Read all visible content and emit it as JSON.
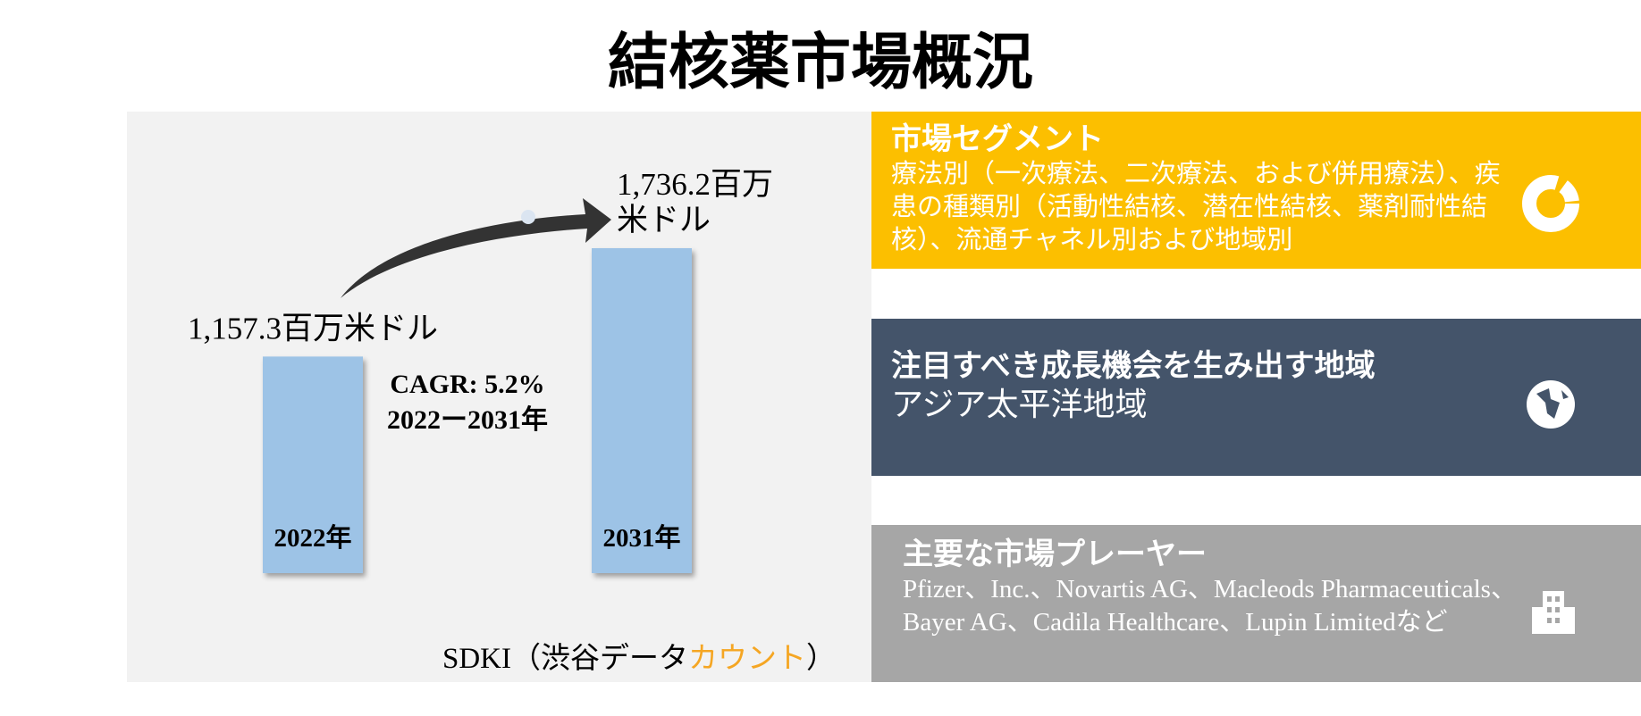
{
  "chart_data": {
    "type": "bar",
    "title": "結核薬市場概況",
    "categories": [
      "2022年",
      "2031年"
    ],
    "values": [
      1157.3,
      1736.2
    ],
    "value_labels": [
      "1,157.3百万米ドル",
      "1,736.2百万米ドル"
    ],
    "color": "#9dc3e6",
    "annotations": [
      "CAGR: 5.2%",
      "2022ー2031年"
    ]
  },
  "source": [
    "SDKI（渋谷データ",
    "カウント",
    "）"
  ],
  "panels": [
    {
      "title": "市場セグメント",
      "body": "療法別（一次療法、二次療法、および併用療法）、疾患の種類別（活動性結核、潜在性結核、薬剤耐性結核）、流通チャネル別および地域別"
    },
    {
      "title": "注目すべき成長機会を生み出す地域",
      "body": "アジア太平洋地域"
    },
    {
      "title": "主要な市場プレーヤー",
      "body": "Pfizer、Inc.、Novartis AG、Macleods Pharmaceuticals、Bayer AG、Cadila Healthcare、Lupin Limitedなど"
    }
  ]
}
